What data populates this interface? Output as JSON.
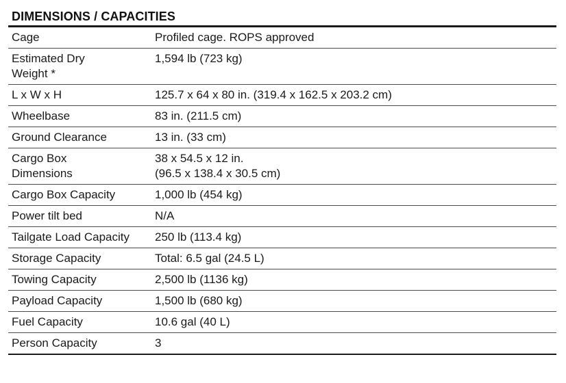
{
  "section_title": "DIMENSIONS / CAPACITIES",
  "rows": [
    {
      "label": [
        "Cage"
      ],
      "value": [
        "Profiled cage. ROPS approved"
      ]
    },
    {
      "label": [
        "Estimated Dry",
        "Weight *"
      ],
      "value": [
        "1,594 lb (723 kg)"
      ]
    },
    {
      "label": [
        "L x W x H"
      ],
      "value": [
        "125.7 x 64 x 80 in. (319.4 x 162.5 x 203.2 cm)"
      ]
    },
    {
      "label": [
        "Wheelbase"
      ],
      "value": [
        "83 in. (211.5 cm)"
      ]
    },
    {
      "label": [
        "Ground Clearance"
      ],
      "value": [
        "13 in. (33 cm)"
      ]
    },
    {
      "label": [
        "Cargo Box",
        "Dimensions"
      ],
      "value": [
        "38 x 54.5 x 12 in.",
        "(96.5 x 138.4 x 30.5 cm)"
      ]
    },
    {
      "label": [
        "Cargo Box Capacity"
      ],
      "value": [
        "1,000 lb (454 kg)"
      ]
    },
    {
      "label": [
        "Power tilt bed"
      ],
      "value": [
        "N/A"
      ]
    },
    {
      "label": [
        "Tailgate Load Capacity"
      ],
      "value": [
        "250 lb (113.4 kg)"
      ]
    },
    {
      "label": [
        "Storage Capacity"
      ],
      "value": [
        "Total: 6.5 gal (24.5 L)"
      ]
    },
    {
      "label": [
        "Towing Capacity"
      ],
      "value": [
        "2,500 lb (1136 kg)"
      ]
    },
    {
      "label": [
        "Payload Capacity"
      ],
      "value": [
        "1,500 lb (680 kg)"
      ]
    },
    {
      "label": [
        "Fuel Capacity"
      ],
      "value": [
        "10.6 gal (40 L)"
      ]
    },
    {
      "label": [
        "Person Capacity"
      ],
      "value": [
        "3"
      ]
    }
  ]
}
